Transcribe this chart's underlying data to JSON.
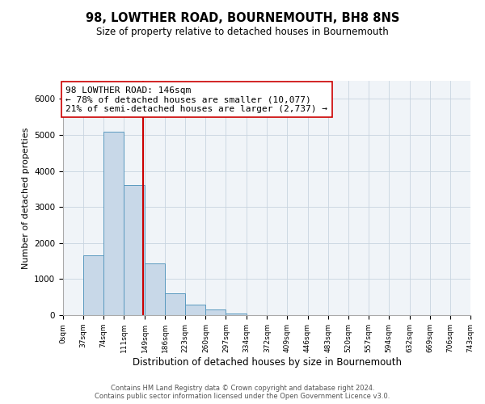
{
  "title": "98, LOWTHER ROAD, BOURNEMOUTH, BH8 8NS",
  "subtitle": "Size of property relative to detached houses in Bournemouth",
  "xlabel": "Distribution of detached houses by size in Bournemouth",
  "ylabel": "Number of detached properties",
  "bar_edges": [
    0,
    37,
    74,
    111,
    149,
    186,
    223,
    260,
    297,
    334,
    372,
    409,
    446,
    483,
    520,
    557,
    594,
    632,
    669,
    706,
    743
  ],
  "bar_heights": [
    0,
    1650,
    5080,
    3600,
    1430,
    610,
    300,
    150,
    50,
    0,
    0,
    0,
    0,
    0,
    0,
    0,
    0,
    0,
    0,
    0
  ],
  "property_line_x": 146,
  "bar_color": "#c8d8e8",
  "bar_edge_color": "#5a9abf",
  "line_color": "#cc0000",
  "annotation_line1": "98 LOWTHER ROAD: 146sqm",
  "annotation_line2": "← 78% of detached houses are smaller (10,077)",
  "annotation_line3": "21% of semi-detached houses are larger (2,737) →",
  "annotation_box_color": "#ffffff",
  "annotation_box_edge_color": "#cc0000",
  "ylim": [
    0,
    6500
  ],
  "xlim": [
    0,
    743
  ],
  "tick_labels": [
    "0sqm",
    "37sqm",
    "74sqm",
    "111sqm",
    "149sqm",
    "186sqm",
    "223sqm",
    "260sqm",
    "297sqm",
    "334sqm",
    "372sqm",
    "409sqm",
    "446sqm",
    "483sqm",
    "520sqm",
    "557sqm",
    "594sqm",
    "632sqm",
    "669sqm",
    "706sqm",
    "743sqm"
  ],
  "footer_line1": "Contains HM Land Registry data © Crown copyright and database right 2024.",
  "footer_line2": "Contains public sector information licensed under the Open Government Licence v3.0.",
  "title_fontsize": 10.5,
  "subtitle_fontsize": 8.5,
  "tick_fontsize": 6.5,
  "ylabel_fontsize": 8,
  "xlabel_fontsize": 8.5,
  "annotation_fontsize": 8,
  "footer_fontsize": 6
}
